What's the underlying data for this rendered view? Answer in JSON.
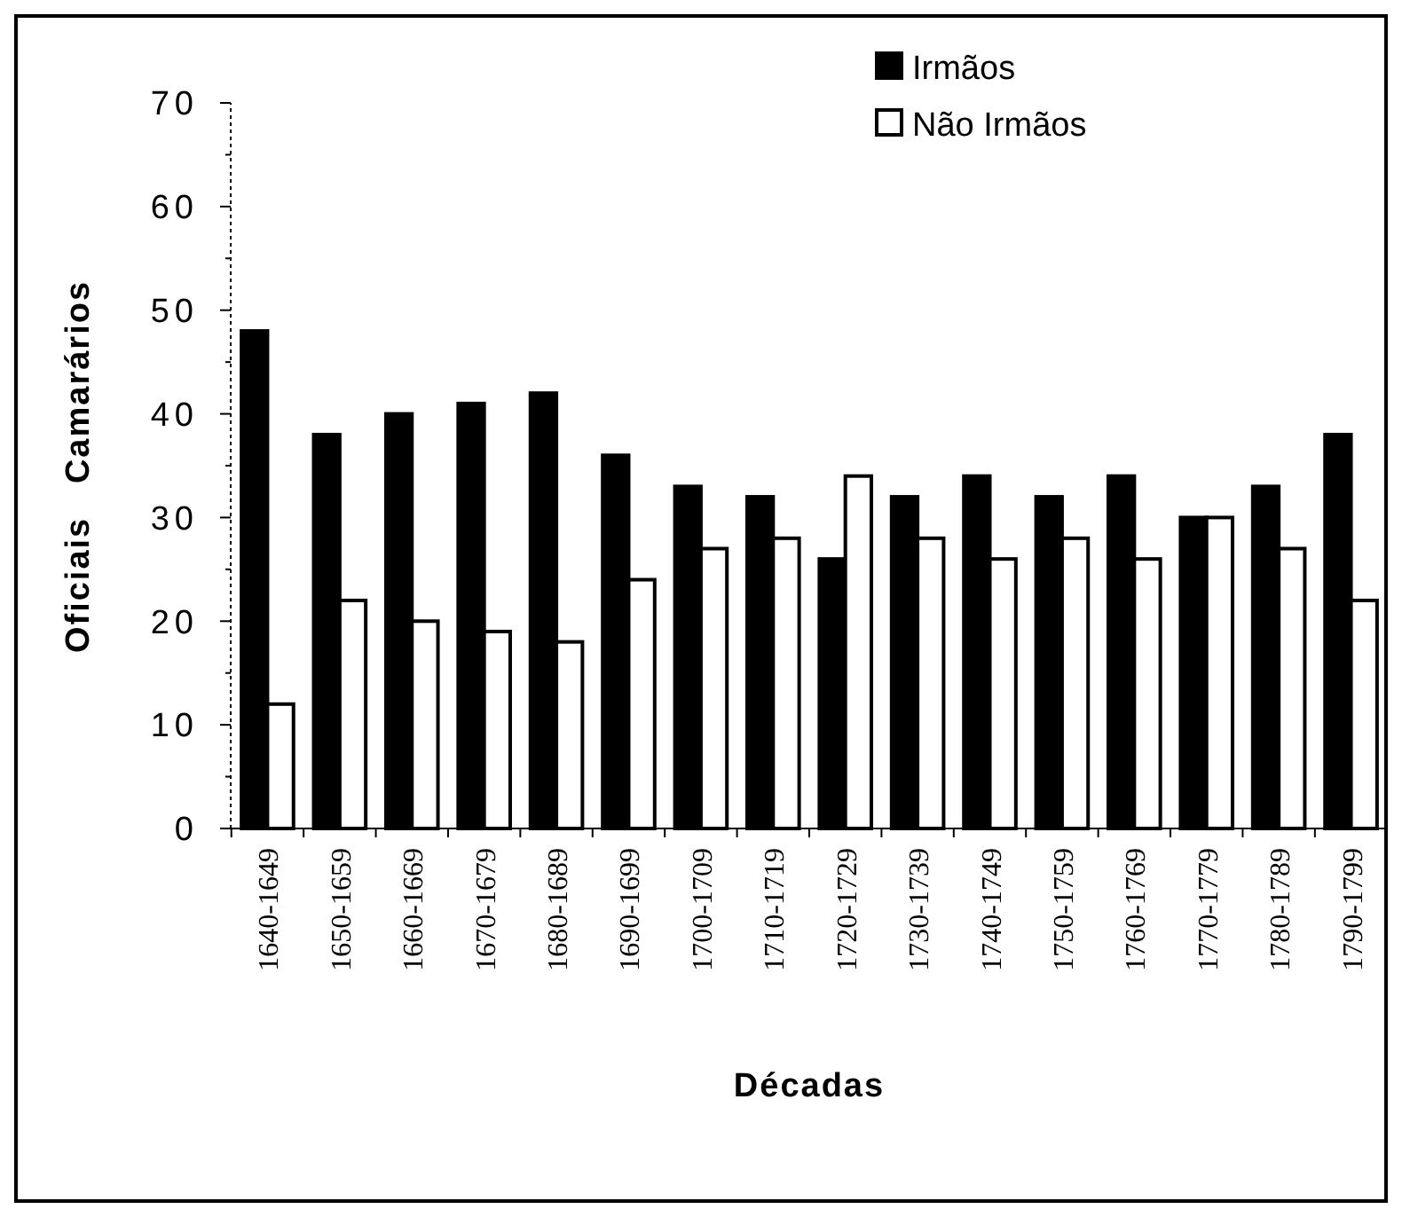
{
  "chart_data": {
    "type": "bar",
    "xlabel": "Décadas",
    "ylabel": "Oficiais   Camarários",
    "categories": [
      "1640-1649",
      "1650-1659",
      "1660-1669",
      "1670-1679",
      "1680-1689",
      "1690-1699",
      "1700-1709",
      "1710-1719",
      "1720-1729",
      "1730-1739",
      "1740-1749",
      "1750-1759",
      "1760-1769",
      "1770-1779",
      "1780-1789",
      "1790-1799"
    ],
    "series": [
      {
        "name": "Irmãos",
        "color": "#000000",
        "values": [
          48,
          38,
          40,
          41,
          42,
          36,
          33,
          32,
          26,
          32,
          34,
          32,
          34,
          30,
          33,
          38
        ]
      },
      {
        "name": "Não Irmãos",
        "color": "#ffffff",
        "values": [
          12,
          22,
          20,
          19,
          18,
          24,
          27,
          28,
          34,
          28,
          26,
          28,
          26,
          30,
          27,
          22
        ]
      }
    ],
    "ylim": [
      0,
      70
    ],
    "yticks": [
      0,
      {
        "value": 5,
        "label": null
      },
      10,
      {
        "value": 15,
        "label": null
      },
      20,
      {
        "value": 25,
        "label": null
      },
      30,
      {
        "value": 35,
        "label": null
      },
      40,
      {
        "value": 45,
        "label": null
      },
      50,
      {
        "value": 55,
        "label": null
      },
      60,
      {
        "value": 65,
        "label": null
      },
      70
    ],
    "grid": false,
    "legend": "top right"
  }
}
